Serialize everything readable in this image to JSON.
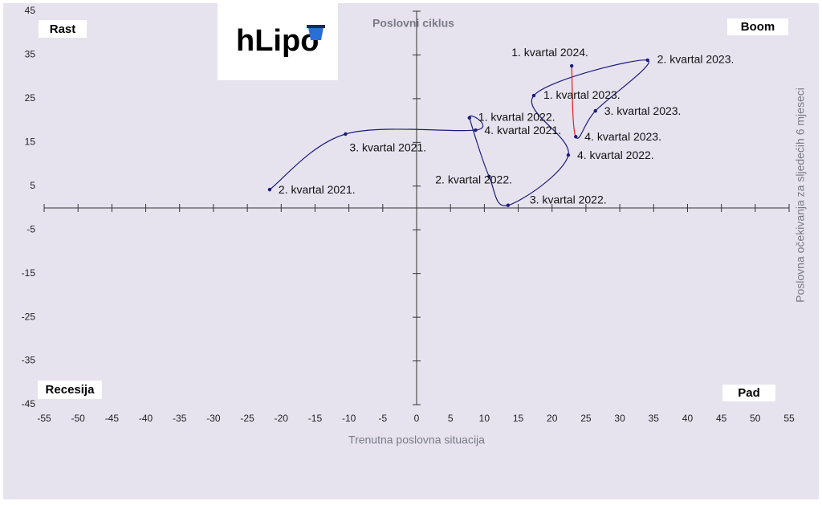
{
  "chart_data": {
    "type": "line",
    "title": "Poslovni ciklus",
    "x_label": "Trenutna poslovna situacija",
    "y_label": "Poslovna očekivanja za sljedećih 6 mjeseci",
    "logo": "hLipo",
    "quadrants": {
      "top_left": "Rast",
      "top_right": "Boom",
      "bottom_left": "Recesija",
      "bottom_right": "Pad"
    },
    "labels": [
      "2. kvartal 2021.",
      "3. kvartal 2021.",
      "4. kvartal 2021.",
      "1. kvartal 2022.",
      "2. kvartal 2022.",
      "3. kvartal 2022.",
      "4. kvartal 2022.",
      "1. kvartal 2023.",
      "2. kvartal 2023.",
      "3. kvartal 2023.",
      "4. kvartal 2023.",
      "1. kvartal 2024."
    ],
    "x": [
      -21.7,
      -10.5,
      8.7,
      7.8,
      10.7,
      13.5,
      22.4,
      17.3,
      34.1,
      26.4,
      23.5,
      22.9
    ],
    "y": [
      4.2,
      16.9,
      17.8,
      20.6,
      7.2,
      0.6,
      12.1,
      25.7,
      33.8,
      22.2,
      16.3,
      32.5
    ],
    "color": "#1c1c7a",
    "segment_colors": [
      "#1c1c7a",
      "#1c1c7a",
      "#1c1c7a",
      "#1c1c7a",
      "#1c1c7a",
      "#1c1c7a",
      "#1c1c7a",
      "#1c1c7a",
      "#1c1c7a",
      "#1c1c7a",
      "#e02020"
    ],
    "xlim": [
      -55,
      55
    ],
    "xticks": [
      -55,
      -50,
      -45,
      -40,
      -35,
      -30,
      -25,
      -20,
      -15,
      -10,
      -5,
      0,
      5,
      10,
      15,
      20,
      25,
      30,
      35,
      40,
      45,
      50,
      55
    ],
    "ylim": [
      -45,
      45
    ],
    "yticks": [
      -45,
      -35,
      -25,
      -15,
      -5,
      5,
      15,
      25,
      35,
      45
    ]
  }
}
